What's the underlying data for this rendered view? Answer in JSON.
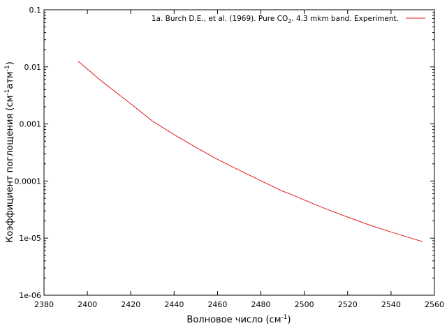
{
  "chart_data": {
    "type": "line",
    "x_label": {
      "main": "Волновое число (см",
      "sup": "-1",
      "tail": ")"
    },
    "y_label": {
      "main": "Коэффициент поглощения (см",
      "sup1": "-1",
      "mid": "атм",
      "sup2": "-1",
      "tail": ")"
    },
    "x_range": [
      2380,
      2560
    ],
    "y_range": [
      1e-06,
      0.1
    ],
    "y_scale": "log",
    "x_ticks": [
      2380,
      2400,
      2420,
      2440,
      2460,
      2480,
      2500,
      2520,
      2540,
      2560
    ],
    "x_tick_labels": [
      "2380",
      "2400",
      "2420",
      "2440",
      "2460",
      "2480",
      "2500",
      "2520",
      "2540",
      "2560"
    ],
    "y_ticks": [
      1e-06,
      1e-05,
      0.0001,
      0.001,
      0.01,
      0.1
    ],
    "y_tick_labels": [
      "1e-06",
      "1e-05",
      "0.0001",
      "0.001",
      "0.01",
      "0.1"
    ],
    "legend_position": "top-right",
    "series": [
      {
        "name": "1a. Burch D.E., et al. (1969). Pure CO2. 4.3 mkm band. Experiment.",
        "legend": {
          "before": "1a. Burch D.E., et al. (1969). Pure CO",
          "sub": "2",
          "after": ". 4.3 mkm band. Experiment."
        },
        "color": "#e41a1c",
        "x": [
          2395.7,
          2405,
          2410,
          2420,
          2430,
          2440,
          2450,
          2460,
          2470,
          2480,
          2490,
          2494.5,
          2500,
          2510,
          2520,
          2530,
          2540,
          2550,
          2554.4
        ],
        "y": [
          0.0126,
          0.0063,
          0.00445,
          0.00225,
          0.00112,
          0.00065,
          0.00039,
          0.00024,
          0.000155,
          0.000101,
          6.65e-05,
          5.73e-05,
          4.65e-05,
          3.25e-05,
          2.33e-05,
          1.7e-05,
          1.28e-05,
          9.8e-06,
          8.7e-06
        ]
      }
    ]
  }
}
